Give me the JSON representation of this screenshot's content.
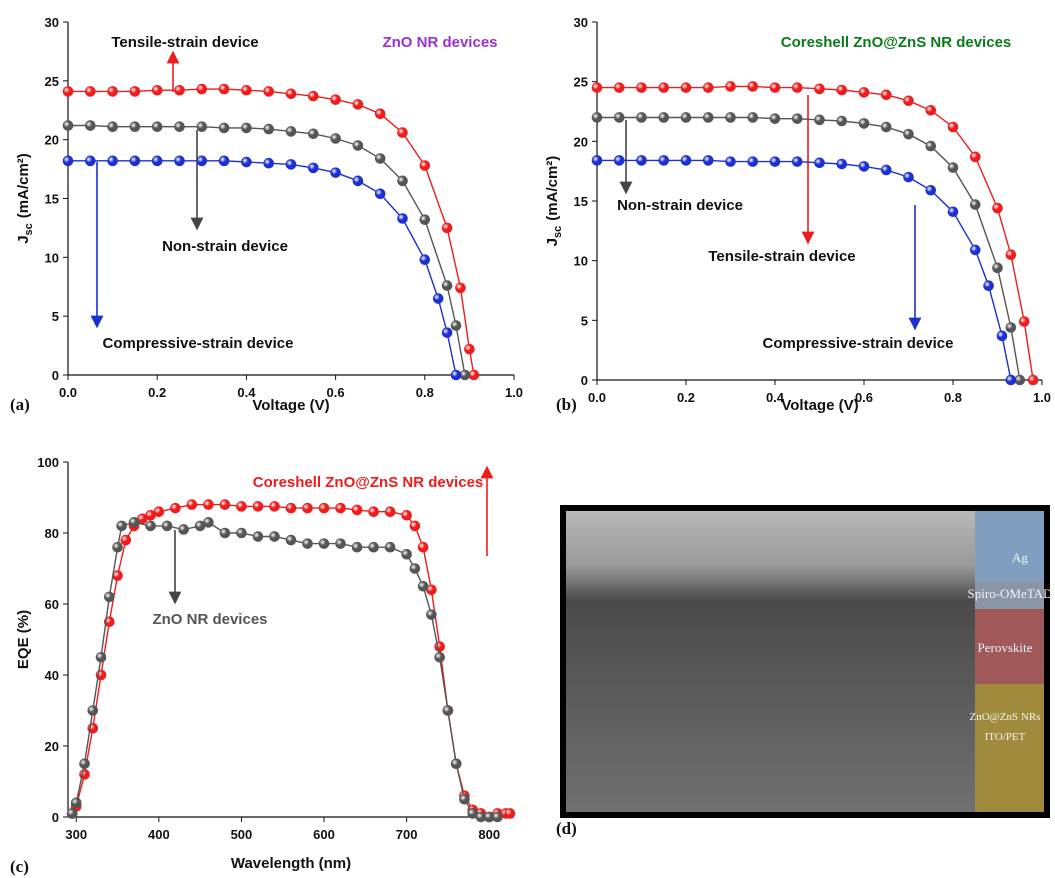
{
  "chart_data": [
    {
      "type": "line",
      "panel_label": "(a)",
      "xlabel": "Voltage (V)",
      "ylabel": {
        "main": "J",
        "sub": "sc",
        "unit": "(mA/cm²)"
      },
      "xlim": [
        0,
        1
      ],
      "xticks": [
        {
          "value": 0,
          "label": "0.0"
        },
        0.2,
        0.4,
        0.6,
        0.8,
        {
          "value": 1,
          "label": "1.0"
        }
      ],
      "ylim": [
        0,
        30
      ],
      "yticks": [
        0,
        5,
        10,
        15,
        20,
        25,
        30
      ],
      "annotations": [
        {
          "text": "Tensile-strain device",
          "color": "#111111"
        },
        {
          "text": "ZnO NR devices",
          "color": "#9b30d0"
        },
        {
          "text": "Non-strain device",
          "color": "#111111"
        },
        {
          "text": "Compressive-strain device",
          "color": "#111111"
        }
      ],
      "series": [
        {
          "name": "Tensile-strain device",
          "color": "#ee1c1c",
          "x": [
            0,
            0.05,
            0.1,
            0.15,
            0.2,
            0.25,
            0.3,
            0.35,
            0.4,
            0.45,
            0.5,
            0.55,
            0.6,
            0.65,
            0.7,
            0.75,
            0.8,
            0.85,
            0.88,
            0.9,
            0.91
          ],
          "values": [
            24.1,
            24.1,
            24.1,
            24.1,
            24.2,
            24.2,
            24.3,
            24.3,
            24.2,
            24.1,
            23.9,
            23.7,
            23.4,
            23.0,
            22.2,
            20.6,
            17.8,
            12.5,
            7.4,
            2.2,
            0
          ]
        },
        {
          "name": "Non-strain device",
          "color": "#555555",
          "x": [
            0,
            0.05,
            0.1,
            0.15,
            0.2,
            0.25,
            0.3,
            0.35,
            0.4,
            0.45,
            0.5,
            0.55,
            0.6,
            0.65,
            0.7,
            0.75,
            0.8,
            0.85,
            0.87,
            0.89
          ],
          "values": [
            21.2,
            21.2,
            21.1,
            21.1,
            21.1,
            21.1,
            21.1,
            21.0,
            21.0,
            20.9,
            20.7,
            20.5,
            20.1,
            19.5,
            18.4,
            16.5,
            13.2,
            7.6,
            4.2,
            0
          ]
        },
        {
          "name": "Compressive-strain device",
          "color": "#1c2fd0",
          "x": [
            0,
            0.05,
            0.1,
            0.15,
            0.2,
            0.25,
            0.3,
            0.35,
            0.4,
            0.45,
            0.5,
            0.55,
            0.6,
            0.65,
            0.7,
            0.75,
            0.8,
            0.83,
            0.85,
            0.87
          ],
          "values": [
            18.2,
            18.2,
            18.2,
            18.2,
            18.2,
            18.2,
            18.2,
            18.2,
            18.1,
            18.0,
            17.9,
            17.6,
            17.2,
            16.5,
            15.4,
            13.3,
            9.8,
            6.5,
            3.6,
            0
          ]
        }
      ]
    },
    {
      "type": "line",
      "panel_label": "(b)",
      "xlabel": "Voltage (V)",
      "ylabel": {
        "main": "J",
        "sub": "sc",
        "unit": "(mA/cm²)"
      },
      "xlim": [
        0,
        1
      ],
      "xticks": [
        {
          "value": 0,
          "label": "0.0"
        },
        0.2,
        0.4,
        0.6,
        0.8,
        {
          "value": 1,
          "label": "1.0"
        }
      ],
      "ylim": [
        0,
        30
      ],
      "yticks": [
        0,
        5,
        10,
        15,
        20,
        25,
        30
      ],
      "annotations": [
        {
          "text": "Coreshell ZnO@ZnS NR devices",
          "color": "#0a7a1a"
        },
        {
          "text": "Non-strain device",
          "color": "#111111"
        },
        {
          "text": "Tensile-strain device",
          "color": "#111111"
        },
        {
          "text": "Compressive-strain device",
          "color": "#111111"
        }
      ],
      "series": [
        {
          "name": "Tensile-strain device",
          "color": "#ee1c1c",
          "x": [
            0,
            0.05,
            0.1,
            0.15,
            0.2,
            0.25,
            0.3,
            0.35,
            0.4,
            0.45,
            0.5,
            0.55,
            0.6,
            0.65,
            0.7,
            0.75,
            0.8,
            0.85,
            0.9,
            0.93,
            0.96,
            0.98
          ],
          "values": [
            24.5,
            24.5,
            24.5,
            24.5,
            24.5,
            24.5,
            24.6,
            24.6,
            24.5,
            24.5,
            24.4,
            24.3,
            24.1,
            23.9,
            23.4,
            22.6,
            21.2,
            18.7,
            14.4,
            10.5,
            4.9,
            0
          ]
        },
        {
          "name": "Non-strain device",
          "color": "#555555",
          "x": [
            0,
            0.05,
            0.1,
            0.15,
            0.2,
            0.25,
            0.3,
            0.35,
            0.4,
            0.45,
            0.5,
            0.55,
            0.6,
            0.65,
            0.7,
            0.75,
            0.8,
            0.85,
            0.9,
            0.93,
            0.95
          ],
          "values": [
            22.0,
            22.0,
            22.0,
            22.0,
            22.0,
            22.0,
            22.0,
            22.0,
            21.9,
            21.9,
            21.8,
            21.7,
            21.5,
            21.2,
            20.6,
            19.6,
            17.8,
            14.7,
            9.4,
            4.4,
            0
          ]
        },
        {
          "name": "Compressive-strain device",
          "color": "#1c2fd0",
          "x": [
            0,
            0.05,
            0.1,
            0.15,
            0.2,
            0.25,
            0.3,
            0.35,
            0.4,
            0.45,
            0.5,
            0.55,
            0.6,
            0.65,
            0.7,
            0.75,
            0.8,
            0.85,
            0.88,
            0.91,
            0.93
          ],
          "values": [
            18.4,
            18.4,
            18.4,
            18.4,
            18.4,
            18.4,
            18.3,
            18.3,
            18.3,
            18.3,
            18.2,
            18.1,
            17.9,
            17.6,
            17.0,
            15.9,
            14.1,
            10.9,
            7.9,
            3.7,
            0
          ]
        }
      ]
    },
    {
      "type": "line",
      "panel_label": "(c)",
      "xlabel": "Wavelength (nm)",
      "ylabel": "EQE (%)",
      "xlim": [
        290,
        830
      ],
      "xticks": [
        300,
        400,
        500,
        600,
        700,
        800
      ],
      "ylim": [
        0,
        100
      ],
      "yticks": [
        0,
        20,
        40,
        60,
        80,
        100
      ],
      "annotations": [
        {
          "text": "Coreshell ZnO@ZnS NR devices",
          "color": "#ee1c1c"
        },
        {
          "text": "ZnO NR devices",
          "color": "#555555"
        }
      ],
      "series": [
        {
          "name": "Coreshell ZnO@ZnS NR devices",
          "color": "#ee1c1c",
          "x": [
            295,
            300,
            310,
            320,
            330,
            340,
            350,
            360,
            370,
            380,
            390,
            400,
            420,
            440,
            460,
            480,
            500,
            520,
            540,
            560,
            580,
            600,
            620,
            640,
            660,
            680,
            700,
            710,
            720,
            730,
            740,
            750,
            760,
            770,
            780,
            790,
            800,
            810,
            820,
            825
          ],
          "values": [
            1,
            3,
            12,
            25,
            40,
            55,
            68,
            78,
            82,
            84,
            85,
            86,
            87,
            88,
            88,
            88,
            87.5,
            87.5,
            87.5,
            87,
            87,
            87,
            87,
            86.5,
            86,
            86,
            85,
            82,
            76,
            64,
            48,
            30,
            15,
            6,
            2,
            1,
            0,
            1,
            1,
            1
          ]
        },
        {
          "name": "ZnO NR devices",
          "color": "#555555",
          "x": [
            295,
            300,
            310,
            320,
            330,
            340,
            350,
            355,
            370,
            390,
            410,
            430,
            450,
            460,
            480,
            500,
            520,
            540,
            560,
            580,
            600,
            620,
            640,
            660,
            680,
            700,
            710,
            720,
            730,
            740,
            750,
            760,
            770,
            780,
            790,
            800,
            810
          ],
          "values": [
            1,
            4,
            15,
            30,
            45,
            62,
            76,
            82,
            83,
            82,
            82,
            81,
            82,
            83,
            80,
            80,
            79,
            79,
            78,
            77,
            77,
            77,
            76,
            76,
            76,
            74,
            70,
            65,
            57,
            45,
            30,
            15,
            5,
            1,
            0,
            0,
            0
          ]
        }
      ]
    }
  ],
  "image_panel": {
    "panel_label": "(d)",
    "layers": [
      "Ag",
      "Spiro-OMeTAD",
      "Perovskite",
      "ZnO@ZnS NRs",
      "ITO/PET"
    ]
  }
}
